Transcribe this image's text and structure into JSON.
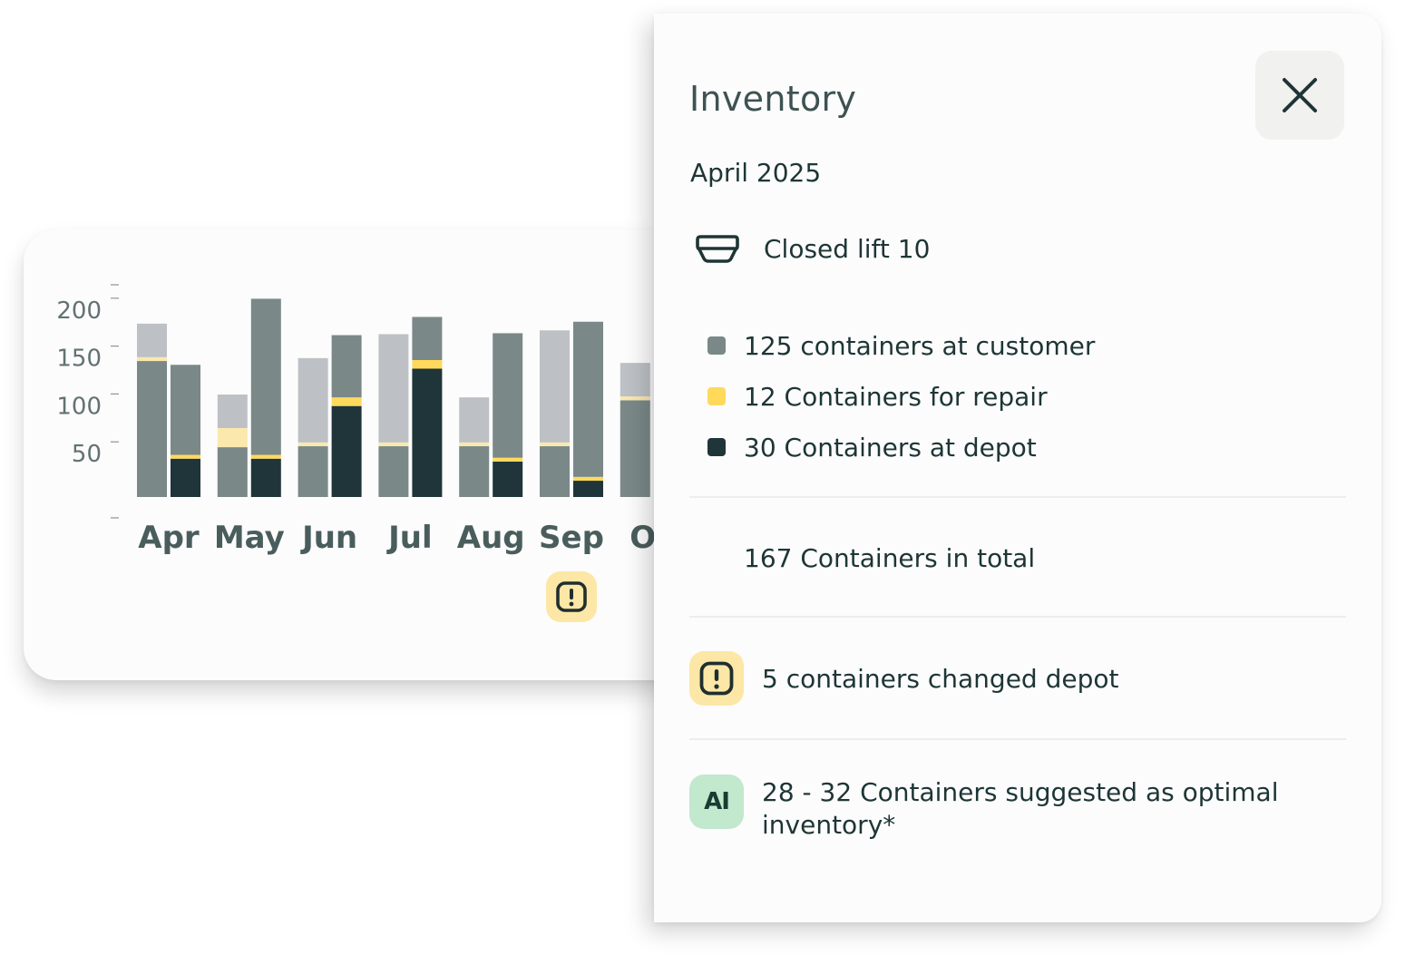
{
  "colors": {
    "customer": "#7a8888",
    "repair": "#ffd95c",
    "depot": "#1f3539",
    "forecast": "#bdc1c5",
    "forecast_repair": "#fbe8ad",
    "axis_text": "#627272",
    "month_text": "#4a5d5d"
  },
  "chart_data": {
    "type": "bar",
    "stacked": true,
    "categories": [
      "Apr",
      "May",
      "Jun",
      "Jul",
      "Aug",
      "Sep",
      "Oct"
    ],
    "visible_category_labels": [
      "Apr",
      "May",
      "Jun",
      "Jul",
      "Aug",
      "Sep",
      "Oc"
    ],
    "yticks": [
      50,
      100,
      150,
      200
    ],
    "ylim": [
      0,
      226
    ],
    "grid": false,
    "bar_groups": [
      {
        "light": {
          "customer": 142,
          "repair": 4,
          "forecast": 35
        },
        "dark": {
          "depot": 40,
          "repair": 4,
          "customer": 94
        }
      },
      {
        "light": {
          "customer": 52,
          "repair": 20,
          "forecast": 35
        },
        "dark": {
          "depot": 40,
          "repair": 4,
          "customer": 163
        }
      },
      {
        "light": {
          "customer": 53,
          "repair": 4,
          "forecast": 88
        },
        "dark": {
          "depot": 95,
          "repair": 9,
          "customer": 65
        }
      },
      {
        "light": {
          "customer": 53,
          "repair": 4,
          "forecast": 113
        },
        "dark": {
          "depot": 134,
          "repair": 9,
          "customer": 45
        }
      },
      {
        "light": {
          "customer": 53,
          "repair": 4,
          "forecast": 47
        },
        "dark": {
          "depot": 37,
          "repair": 4,
          "customer": 130
        }
      },
      {
        "light": {
          "customer": 53,
          "repair": 4,
          "forecast": 117
        },
        "dark": {
          "depot": 17,
          "repair": 4,
          "customer": 162
        }
      },
      {
        "light": {
          "customer": 101,
          "repair": 4,
          "forecast": 35
        },
        "dark": null
      }
    ],
    "alert_month": "Sep"
  },
  "panel": {
    "title": "Inventory",
    "month": "April 2025",
    "lift": {
      "icon": "container-lift-icon",
      "text": "Closed lift 10"
    },
    "legend": [
      {
        "key": "customer",
        "text": "125 containers at customer"
      },
      {
        "key": "repair",
        "text": "12 Containers for repair"
      },
      {
        "key": "depot",
        "text": "30 Containers at depot"
      }
    ],
    "total": "167 Containers in total",
    "alert": {
      "icon": "alert-icon",
      "text": "5 containers changed depot"
    },
    "ai": {
      "badge": "AI",
      "text": "28 - 32 Containers suggested as optimal inventory*"
    },
    "close_icon": "close-icon"
  }
}
